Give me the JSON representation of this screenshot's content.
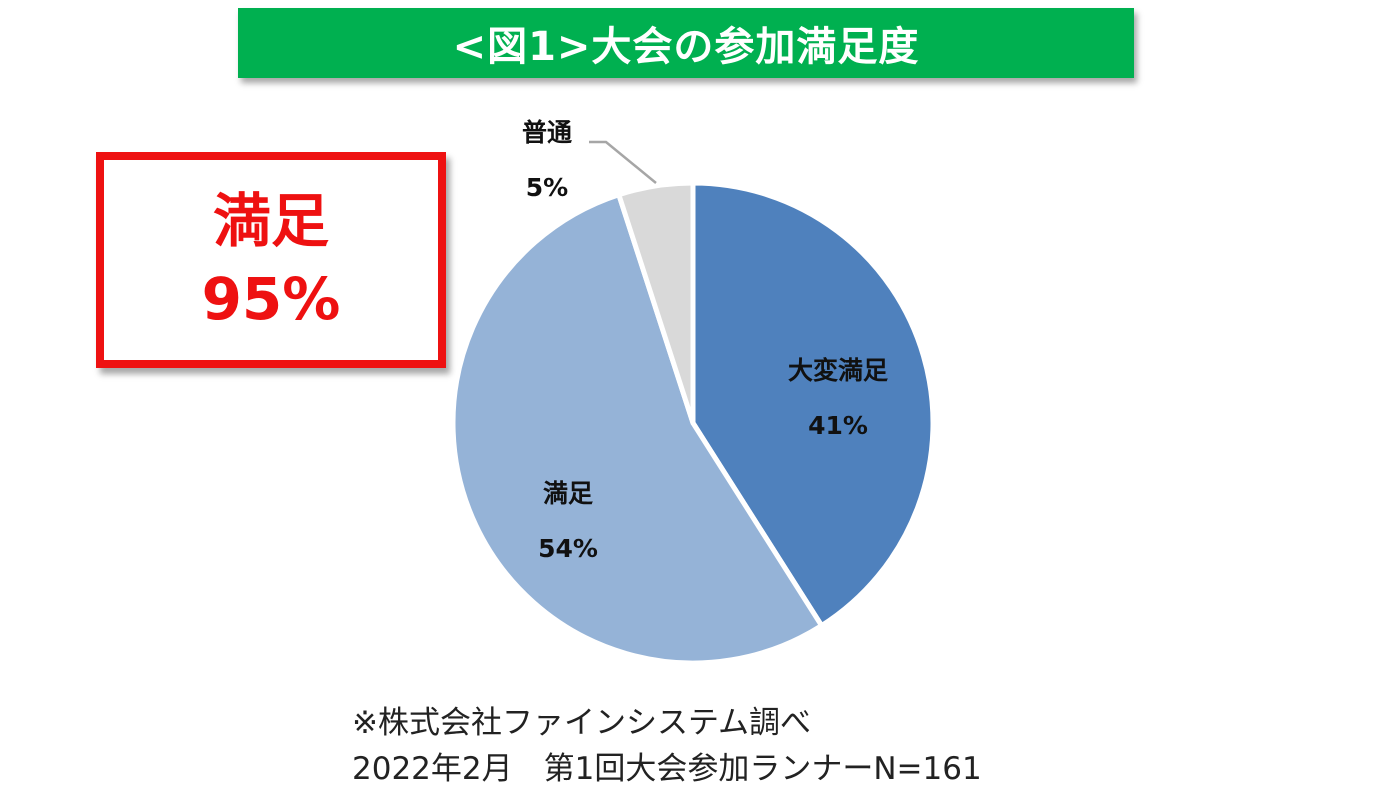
{
  "title": "<図1>大会の参加満足度",
  "callout": {
    "line1": "満足",
    "line2": "95%"
  },
  "colors": {
    "title_bg": "#00b050",
    "callout": "#ee1111",
    "leader_line": "#a6a6a6"
  },
  "chart_data": {
    "type": "pie",
    "title": "<図1>大会の参加満足度",
    "start": "12 o'clock",
    "direction": "clockwise",
    "slices": [
      {
        "label": "大変満足",
        "value": 41,
        "value_label": "41%",
        "color": "#4f81bd"
      },
      {
        "label": "満足",
        "value": 54,
        "value_label": "54%",
        "color": "#95b3d7"
      },
      {
        "label": "普通",
        "value": 5,
        "value_label": "5%",
        "color": "#d9d9d9"
      }
    ]
  },
  "footnote": {
    "line1": "※株式会社ファインシステム調べ",
    "line2": "2022年2月　第1回大会参加ランナーN=161"
  }
}
